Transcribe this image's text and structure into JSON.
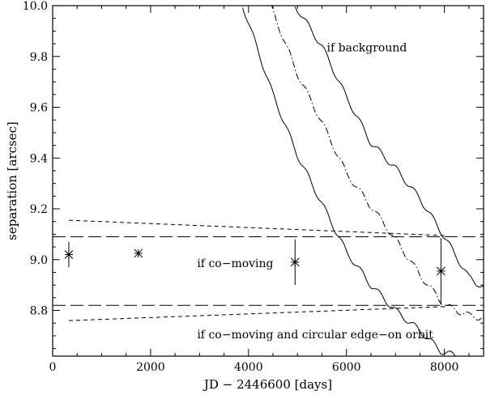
{
  "chart_data": {
    "type": "scatter",
    "title": "",
    "xlabel": "JD − 2446600 [days]",
    "ylabel": "separation [arcsec]",
    "xlim": [
      0,
      8800
    ],
    "ylim": [
      8.62,
      10.0
    ],
    "xticks": [
      0,
      2000,
      4000,
      6000,
      8000
    ],
    "xtick_labels": [
      "0",
      "2000",
      "4000",
      "6000",
      "8000"
    ],
    "yticks": [
      8.8,
      9.0,
      9.2,
      9.4,
      9.6,
      9.8,
      10.0
    ],
    "ytick_labels": [
      "8.8",
      "9.0",
      "9.2",
      "9.4",
      "9.6",
      "9.8",
      "10.0"
    ],
    "grid": false,
    "annotations": [
      {
        "text": "if background",
        "x": 5600,
        "y": 9.82
      },
      {
        "text": "if co−moving",
        "x": 2950,
        "y": 8.97
      },
      {
        "text": "if co−moving and circular edge−on orbit",
        "x": 2950,
        "y": 8.69
      }
    ],
    "series": [
      {
        "style": "points-with-errorbars",
        "x": [
          330,
          1750,
          4950,
          7930
        ],
        "y": [
          9.02,
          9.025,
          8.99,
          8.955
        ],
        "yerr": [
          0.05,
          0.008,
          0.09,
          0.13
        ]
      },
      {
        "style": "long-dashed",
        "x": [
          0,
          8800
        ],
        "y": [
          9.09,
          9.09
        ]
      },
      {
        "style": "long-dashed",
        "x": [
          0,
          8800
        ],
        "y": [
          8.82,
          8.82
        ]
      },
      {
        "style": "short-dashed",
        "x": [
          330,
          8000
        ],
        "y": [
          9.155,
          9.095
        ]
      },
      {
        "style": "short-dashed",
        "x": [
          330,
          8000
        ],
        "y": [
          8.76,
          8.815
        ]
      },
      {
        "style": "dash-dot",
        "x": [
          4450,
          5000,
          5500,
          6000,
          6500,
          7000,
          7500,
          8000,
          8500,
          8800
        ],
        "y": [
          10.0,
          9.73,
          9.54,
          9.34,
          9.21,
          9.08,
          8.94,
          8.82,
          8.78,
          8.77
        ]
      },
      {
        "style": "solid",
        "x": [
          3880,
          4500,
          5000,
          5500,
          6000,
          6500,
          7000,
          7500,
          7930,
          8400,
          8800
        ],
        "y": [
          10.0,
          9.65,
          9.41,
          9.22,
          9.03,
          8.9,
          8.8,
          8.72,
          8.64,
          8.61,
          8.58
        ]
      },
      {
        "style": "solid",
        "x": [
          4950,
          5500,
          6000,
          6500,
          7000,
          7500,
          8000,
          8500,
          8800
        ],
        "y": [
          10.0,
          9.84,
          9.64,
          9.46,
          9.36,
          9.24,
          9.09,
          8.93,
          8.89
        ]
      }
    ]
  }
}
